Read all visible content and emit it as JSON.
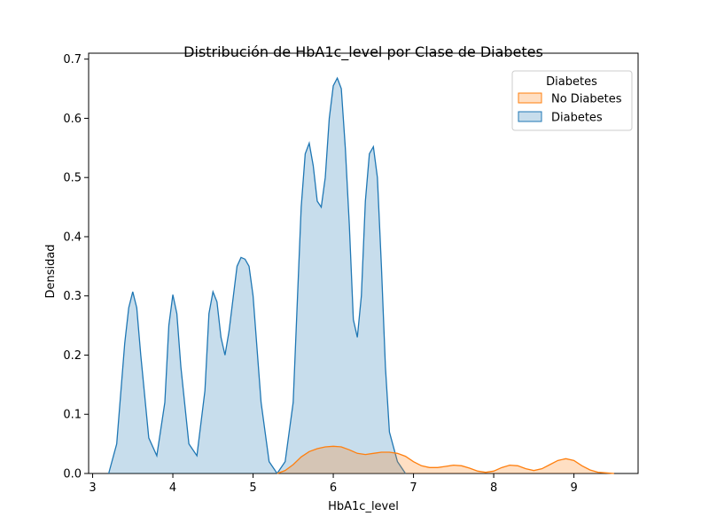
{
  "chart_data": {
    "type": "area",
    "title": "Distribución de HbA1c_level por Clase de Diabetes",
    "xlabel": "HbA1c_level",
    "ylabel": "Densidad",
    "xlim": [
      2.95,
      9.8
    ],
    "ylim": [
      0,
      0.71
    ],
    "xticks": [
      3,
      4,
      5,
      6,
      7,
      8,
      9
    ],
    "yticks": [
      0.0,
      0.1,
      0.2,
      0.3,
      0.4,
      0.5,
      0.6,
      0.7
    ],
    "grid": false,
    "legend": {
      "title": "Diabetes",
      "placement": "top-right"
    },
    "series": [
      {
        "name": "Diabetes",
        "color": "#1f77b4",
        "fill": "#c6dbef",
        "x": [
          3.2,
          3.3,
          3.4,
          3.45,
          3.5,
          3.55,
          3.6,
          3.7,
          3.8,
          3.9,
          3.95,
          4.0,
          4.05,
          4.1,
          4.2,
          4.3,
          4.4,
          4.45,
          4.5,
          4.55,
          4.6,
          4.65,
          4.7,
          4.8,
          4.85,
          4.9,
          4.95,
          5.0,
          5.1,
          5.2,
          5.3,
          5.4,
          5.5,
          5.6,
          5.65,
          5.7,
          5.75,
          5.8,
          5.85,
          5.9,
          5.95,
          6.0,
          6.05,
          6.1,
          6.15,
          6.2,
          6.25,
          6.3,
          6.35,
          6.4,
          6.45,
          6.5,
          6.55,
          6.6,
          6.65,
          6.7,
          6.8,
          6.9
        ],
        "y": [
          0.0,
          0.05,
          0.22,
          0.28,
          0.307,
          0.28,
          0.2,
          0.06,
          0.03,
          0.12,
          0.25,
          0.302,
          0.27,
          0.18,
          0.05,
          0.03,
          0.14,
          0.27,
          0.307,
          0.29,
          0.23,
          0.2,
          0.24,
          0.35,
          0.365,
          0.362,
          0.35,
          0.3,
          0.12,
          0.02,
          0.0,
          0.02,
          0.12,
          0.45,
          0.54,
          0.558,
          0.52,
          0.46,
          0.45,
          0.5,
          0.6,
          0.655,
          0.668,
          0.65,
          0.55,
          0.42,
          0.26,
          0.23,
          0.3,
          0.46,
          0.54,
          0.552,
          0.5,
          0.35,
          0.18,
          0.07,
          0.02,
          0.0
        ]
      },
      {
        "name": "No Diabetes",
        "color": "#ff7f0e",
        "fill": "#ffd4b0",
        "x": [
          5.3,
          5.4,
          5.5,
          5.6,
          5.7,
          5.8,
          5.9,
          6.0,
          6.1,
          6.2,
          6.3,
          6.4,
          6.5,
          6.6,
          6.7,
          6.8,
          6.9,
          7.0,
          7.1,
          7.2,
          7.3,
          7.4,
          7.5,
          7.6,
          7.7,
          7.8,
          7.9,
          8.0,
          8.1,
          8.2,
          8.3,
          8.4,
          8.5,
          8.6,
          8.7,
          8.8,
          8.9,
          9.0,
          9.1,
          9.2,
          9.3,
          9.4,
          9.5
        ],
        "y": [
          0.0,
          0.005,
          0.015,
          0.028,
          0.037,
          0.042,
          0.045,
          0.046,
          0.045,
          0.04,
          0.034,
          0.032,
          0.034,
          0.036,
          0.036,
          0.034,
          0.029,
          0.02,
          0.013,
          0.01,
          0.01,
          0.012,
          0.014,
          0.013,
          0.009,
          0.004,
          0.002,
          0.004,
          0.01,
          0.014,
          0.013,
          0.008,
          0.005,
          0.008,
          0.015,
          0.022,
          0.025,
          0.022,
          0.013,
          0.006,
          0.002,
          0.001,
          0.0
        ]
      }
    ]
  }
}
